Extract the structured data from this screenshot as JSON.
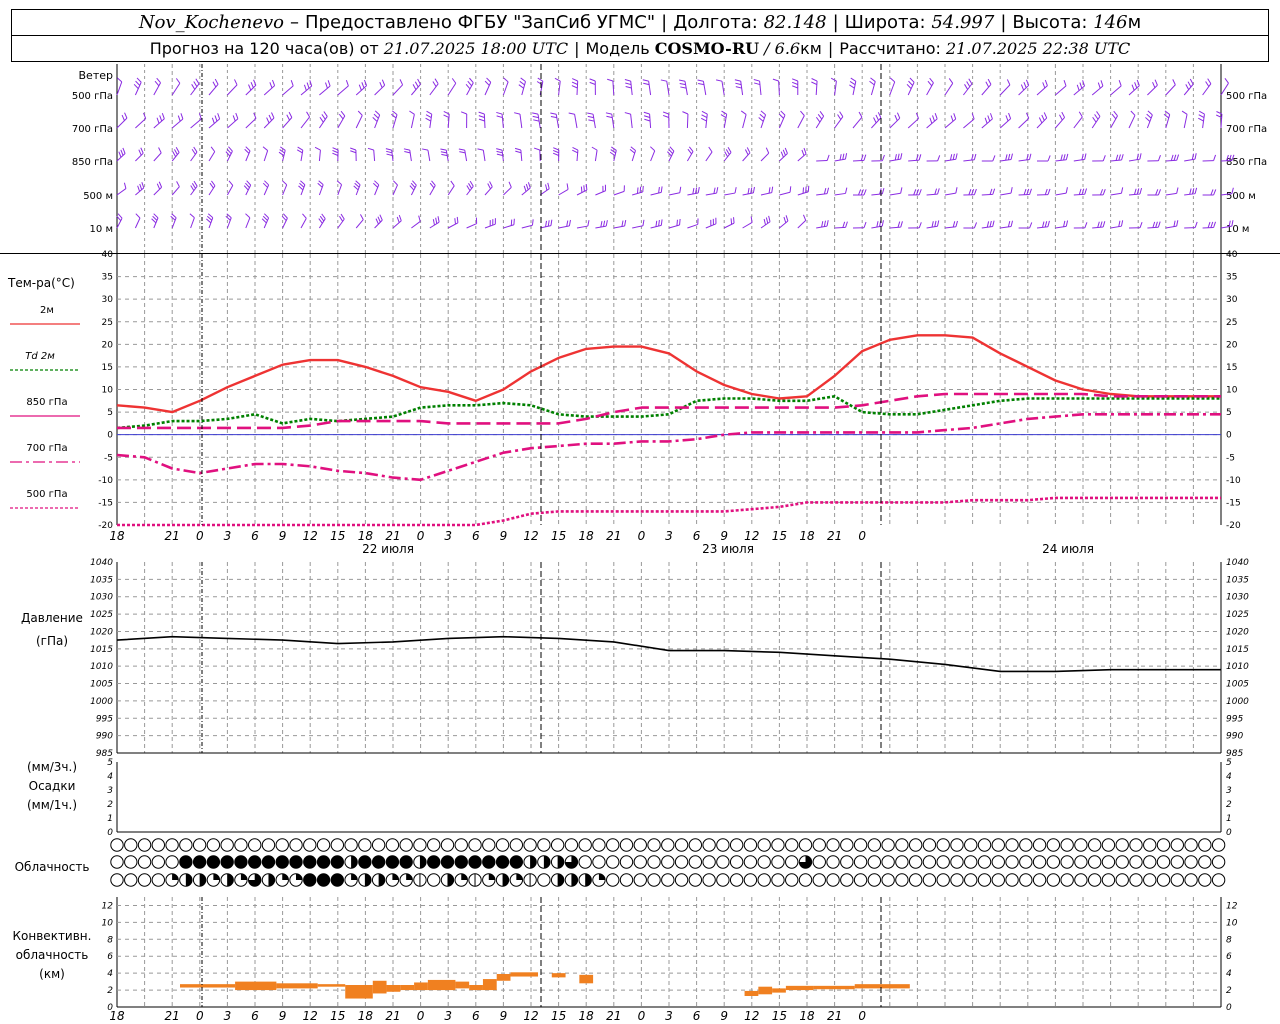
{
  "header": {
    "station": "Nov_Kochenevo",
    "dash": "–",
    "provider": "Предоставлено ФГБУ \"ЗапСиб УГМС\"",
    "lon_label": "Долгота:",
    "lon_value": "82.148",
    "lat_label": "Широта:",
    "lat_value": "54.997",
    "alt_label": "Высота:",
    "alt_value": "146",
    "alt_unit": "м",
    "forecast_prefix": "Прогноз на 120 часа(ов) от",
    "forecast_time": "21.07.2025 18:00 UTC",
    "model_label": "Модель",
    "model_name": "COSMO-RU",
    "model_res": "/ 6.6",
    "model_res_unit": "км",
    "calc_label": "Рассчитано:",
    "calc_time": "21.07.2025 22:38 UTC"
  },
  "colors": {
    "wind": "#8a2be2",
    "t2m": "#ee3333",
    "td2m": "#008000",
    "t850": "#e0107f",
    "t700": "#e0107f",
    "t500": "#e0107f",
    "pressure": "#000000",
    "conv_cloud": "#f08020",
    "grid": "#999999"
  },
  "chart_data": [
    {
      "panel": "wind",
      "type": "wind-barbs",
      "title": "Ветер",
      "levels": [
        "500 гПа",
        "700 гПа",
        "850 гПа",
        "500 м",
        "10 м"
      ]
    },
    {
      "panel": "temperature",
      "type": "line",
      "title": "Тем-ра(°C)",
      "ylim": [
        -20,
        40
      ],
      "yticks": [
        40,
        35,
        30,
        25,
        20,
        15,
        10,
        5,
        0,
        -5,
        -10,
        -15,
        -20
      ],
      "x_hours": [
        0,
        3,
        6,
        9,
        12,
        15,
        18,
        21,
        24,
        27,
        30,
        33,
        36,
        39,
        42,
        45,
        48,
        51,
        54,
        57,
        60,
        63,
        66,
        69,
        72,
        75,
        78,
        81,
        84,
        87,
        90,
        93,
        96,
        99,
        102,
        105,
        108,
        111,
        114,
        117,
        120
      ],
      "series": [
        {
          "name": "2м",
          "values": [
            6.5,
            6,
            5,
            7.5,
            10.5,
            13,
            15.5,
            16.5,
            16.5,
            15,
            13,
            10.5,
            9.5,
            7.5,
            10,
            14,
            17,
            19,
            19.5,
            19.5,
            18,
            14,
            11,
            9,
            8,
            8.5,
            13,
            18.5,
            21,
            22,
            22,
            21.5,
            18,
            15,
            12,
            10,
            9,
            8.5,
            8.5,
            8.5,
            8.5
          ]
        },
        {
          "name": "Td 2м",
          "values": [
            1.5,
            2,
            3,
            3,
            3.5,
            4.5,
            2.5,
            3.5,
            3,
            3.5,
            4,
            6,
            6.5,
            6.5,
            7,
            6.5,
            4.5,
            4,
            4,
            4,
            4.5,
            7.5,
            8,
            8,
            7.5,
            7.5,
            8.5,
            5,
            4.5,
            4.5,
            5.5,
            6.5,
            7.5,
            8,
            8,
            8,
            8,
            8,
            8,
            8,
            8
          ]
        },
        {
          "name": "850 гПа",
          "values": [
            1.5,
            1.5,
            1.5,
            1.5,
            1.5,
            1.5,
            1.5,
            2,
            3,
            3,
            3,
            3,
            2.5,
            2.5,
            2.5,
            2.5,
            2.5,
            3.5,
            5,
            6,
            6,
            6,
            6,
            6,
            6,
            6,
            6,
            6.5,
            7.5,
            8.5,
            9,
            9,
            9,
            9,
            9,
            9,
            8.5,
            8.5,
            8.5,
            8.5,
            8.5
          ]
        },
        {
          "name": "700 гПа",
          "values": [
            -4.5,
            -5,
            -7.5,
            -8.5,
            -7.5,
            -6.5,
            -6.5,
            -7,
            -8,
            -8.5,
            -9.5,
            -10,
            -8,
            -6,
            -4,
            -3,
            -2.5,
            -2,
            -2,
            -1.5,
            -1.5,
            -1,
            0,
            0.5,
            0.5,
            0.5,
            0.5,
            0.5,
            0.5,
            0.5,
            1,
            1.5,
            2.5,
            3.5,
            4,
            4.5,
            4.5,
            4.5,
            4.5,
            4.5,
            4.5
          ]
        },
        {
          "name": "500 гПа",
          "values": [
            -20,
            -20,
            -20,
            -20,
            -20,
            -20,
            -20,
            -20,
            -20,
            -20,
            -20,
            -20,
            -20,
            -20,
            -19,
            -17.5,
            -17,
            -17,
            -17,
            -17,
            -17,
            -17,
            -17,
            -16.5,
            -16,
            -15,
            -15,
            -15,
            -15,
            -15,
            -15,
            -14.5,
            -14.5,
            -14.5,
            -14,
            -14,
            -14,
            -14,
            -14,
            -14,
            -14
          ]
        }
      ]
    },
    {
      "panel": "pressure",
      "type": "line",
      "title": "Давление",
      "unit": "(гПа)",
      "ylim": [
        985,
        1040
      ],
      "yticks": [
        1040,
        1035,
        1030,
        1025,
        1020,
        1015,
        1010,
        1005,
        1000,
        995,
        990,
        985
      ],
      "x_hours": [
        0,
        6,
        12,
        18,
        24,
        30,
        36,
        42,
        48,
        54,
        60,
        66,
        72,
        78,
        84,
        90,
        96,
        102,
        108,
        114,
        120
      ],
      "series": [
        {
          "name": "",
          "values": [
            1017.5,
            1018.5,
            1018,
            1017.5,
            1016.5,
            1017,
            1018,
            1018.5,
            1018,
            1017,
            1014.5,
            1014.5,
            1014,
            1013,
            1012,
            1010.5,
            1008.5,
            1008.5,
            1009,
            1009,
            1009
          ]
        }
      ]
    },
    {
      "panel": "precipitation",
      "type": "bar",
      "title": "Осадки",
      "unit_top": "(мм/3ч.)",
      "unit_bottom": "(мм/1ч.)",
      "ylim": [
        0,
        5
      ],
      "yticks": [
        5,
        4,
        3,
        2,
        1,
        0
      ],
      "values": []
    },
    {
      "panel": "cloudiness",
      "type": "table",
      "title": "Облачность",
      "rows": 3,
      "step_hours": 1
    },
    {
      "panel": "convective",
      "type": "bar",
      "title_lines": [
        "Конвективн.",
        "облачность",
        "(км)"
      ],
      "ylim": [
        0,
        13
      ],
      "yticks": [
        12,
        10,
        8,
        6,
        4,
        2,
        0
      ],
      "segments": [
        {
          "from": 0,
          "to": 4,
          "bottom": 2.3,
          "top": 2.7
        },
        {
          "from": 4,
          "to": 7,
          "bottom": 2.0,
          "top": 3.0
        },
        {
          "from": 7,
          "to": 10,
          "bottom": 2.2,
          "top": 2.8
        },
        {
          "from": 10,
          "to": 12,
          "bottom": 2.4,
          "top": 2.7
        },
        {
          "from": 12,
          "to": 14,
          "bottom": 1.0,
          "top": 2.6
        },
        {
          "from": 14,
          "to": 15,
          "bottom": 1.6,
          "top": 3.1
        },
        {
          "from": 15,
          "to": 16,
          "bottom": 1.8,
          "top": 2.6
        },
        {
          "from": 16,
          "to": 17,
          "bottom": 2.0,
          "top": 2.6
        },
        {
          "from": 17,
          "to": 18,
          "bottom": 2.0,
          "top": 2.9
        },
        {
          "from": 18,
          "to": 20,
          "bottom": 2.0,
          "top": 3.2
        },
        {
          "from": 20,
          "to": 21,
          "bottom": 2.2,
          "top": 3.0
        },
        {
          "from": 21,
          "to": 22,
          "bottom": 2.0,
          "top": 2.6
        },
        {
          "from": 22,
          "to": 23,
          "bottom": 2.0,
          "top": 3.3
        },
        {
          "from": 23,
          "to": 24,
          "bottom": 3.1,
          "top": 3.9
        },
        {
          "from": 24,
          "to": 26,
          "bottom": 3.6,
          "top": 4.1
        },
        {
          "from": 27,
          "to": 28,
          "bottom": 3.5,
          "top": 4.0
        },
        {
          "from": 29,
          "to": 30,
          "bottom": 2.8,
          "top": 3.8
        },
        {
          "from": 41,
          "to": 42,
          "bottom": 1.3,
          "top": 1.9
        },
        {
          "from": 42,
          "to": 43,
          "bottom": 1.5,
          "top": 2.4
        },
        {
          "from": 43,
          "to": 44,
          "bottom": 1.7,
          "top": 2.2
        },
        {
          "from": 44,
          "to": 46,
          "bottom": 2.0,
          "top": 2.5
        },
        {
          "from": 46,
          "to": 49,
          "bottom": 2.1,
          "top": 2.5
        },
        {
          "from": 49,
          "to": 53,
          "bottom": 2.2,
          "top": 2.7
        }
      ]
    }
  ],
  "time_axis": {
    "hours": [
      "18",
      "21",
      "0",
      "3",
      "6",
      "9",
      "12",
      "15",
      "18",
      "21",
      "0",
      "3",
      "6",
      "9",
      "12",
      "15",
      "18",
      "21",
      "0",
      "3",
      "6",
      "9",
      "12",
      "15",
      "18",
      "21",
      "0"
    ],
    "days": [
      "22 июля",
      "23 июля",
      "24 июля"
    ]
  }
}
